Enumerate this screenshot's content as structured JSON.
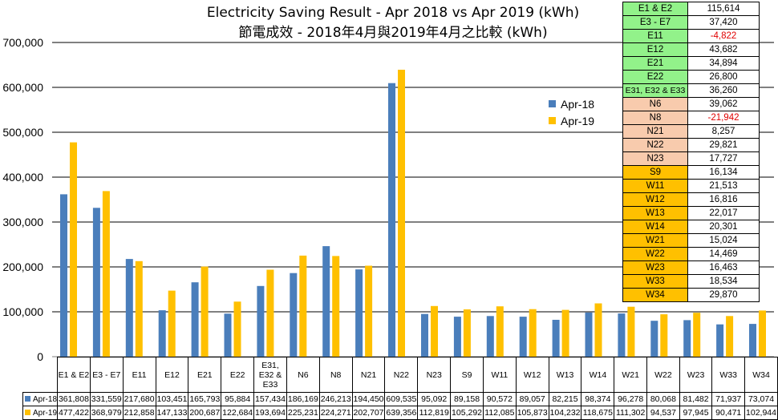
{
  "title": "Electricity Saving Result - Apr 2018 vs Apr 2019 (kWh)",
  "subtitle": "節電成效 - 2018年4月與2019年4月之比較 (kWh)",
  "colors": {
    "apr18": "#4a7ebb",
    "apr19": "#ffc000",
    "green": "#92f28a",
    "peach": "#f8cbad",
    "gold": "#ffc000"
  },
  "chart_data": {
    "type": "bar",
    "title": "Electricity Saving Result - Apr 2018 vs Apr 2019 (kWh)",
    "subtitle": "節電成效 - 2018年4月與2019年4月之比較 (kWh)",
    "categories": [
      "E1 & E2",
      "E3 - E7",
      "E11",
      "E12",
      "E21",
      "E22",
      "E31, E32 & E33",
      "N6",
      "N8",
      "N21",
      "N22",
      "N23",
      "S9",
      "W11",
      "W12",
      "W13",
      "W14",
      "W21",
      "W22",
      "W23",
      "W33",
      "W34"
    ],
    "series": [
      {
        "name": "Apr-18",
        "values": [
          361808,
          331559,
          217680,
          103451,
          165793,
          95884,
          157434,
          186169,
          246213,
          194450,
          609535,
          95092,
          89158,
          90572,
          89057,
          82215,
          98374,
          96278,
          80068,
          81482,
          71937,
          73074
        ]
      },
      {
        "name": "Apr-19",
        "values": [
          477422,
          368979,
          212858,
          147133,
          200687,
          122684,
          193694,
          225231,
          224271,
          202707,
          639356,
          112819,
          105292,
          112085,
          105873,
          104232,
          118675,
          111302,
          94537,
          97945,
          90471,
          102944
        ]
      }
    ],
    "ylim": [
      0,
      700000
    ],
    "yticks": [
      "0",
      "100,000",
      "200,000",
      "300,000",
      "400,000",
      "500,000",
      "600,000",
      "700,000"
    ],
    "grid": true,
    "legend": "right",
    "data_table": {
      "rows": [
        {
          "label": "Apr-18",
          "cells": [
            "361,808",
            "331,559",
            "217,680",
            "103,451",
            "165,793",
            "95,884",
            "157,434",
            "186,169",
            "246,213",
            "194,450",
            "609,535",
            "95,092",
            "89,158",
            "90,572",
            "89,057",
            "82,215",
            "98,374",
            "96,278",
            "80,068",
            "81,482",
            "71,937",
            "73,074"
          ]
        },
        {
          "label": "Apr-19",
          "cells": [
            "477,422",
            "368,979",
            "212,858",
            "147,133",
            "200,687",
            "122,684",
            "193,694",
            "225,231",
            "224,271",
            "202,707",
            "639,356",
            "112,819",
            "105,292",
            "112,085",
            "105,873",
            "104,232",
            "118,675",
            "111,302",
            "94,537",
            "97,945",
            "90,471",
            "102,944"
          ]
        }
      ]
    }
  },
  "savings_table": [
    {
      "zone": "E1 & E2",
      "value": "115,614",
      "group": "green"
    },
    {
      "zone": "E3 - E7",
      "value": "37,420",
      "group": "green"
    },
    {
      "zone": "E11",
      "value": "-4,822",
      "group": "green",
      "negative": true
    },
    {
      "zone": "E12",
      "value": "43,682",
      "group": "green"
    },
    {
      "zone": "E21",
      "value": "34,894",
      "group": "green"
    },
    {
      "zone": "E22",
      "value": "26,800",
      "group": "green"
    },
    {
      "zone": "E31, E32 & E33",
      "value": "36,260",
      "group": "green"
    },
    {
      "zone": "N6",
      "value": "39,062",
      "group": "peach"
    },
    {
      "zone": "N8",
      "value": "-21,942",
      "group": "peach",
      "negative": true
    },
    {
      "zone": "N21",
      "value": "8,257",
      "group": "peach"
    },
    {
      "zone": "N22",
      "value": "29,821",
      "group": "peach"
    },
    {
      "zone": "N23",
      "value": "17,727",
      "group": "peach"
    },
    {
      "zone": "S9",
      "value": "16,134",
      "group": "gold"
    },
    {
      "zone": "W11",
      "value": "21,513",
      "group": "gold"
    },
    {
      "zone": "W12",
      "value": "16,816",
      "group": "gold"
    },
    {
      "zone": "W13",
      "value": "22,017",
      "group": "gold"
    },
    {
      "zone": "W14",
      "value": "20,301",
      "group": "gold"
    },
    {
      "zone": "W21",
      "value": "15,024",
      "group": "gold"
    },
    {
      "zone": "W22",
      "value": "14,469",
      "group": "gold"
    },
    {
      "zone": "W23",
      "value": "16,463",
      "group": "gold"
    },
    {
      "zone": "W33",
      "value": "18,534",
      "group": "gold"
    },
    {
      "zone": "W34",
      "value": "29,870",
      "group": "gold"
    }
  ]
}
